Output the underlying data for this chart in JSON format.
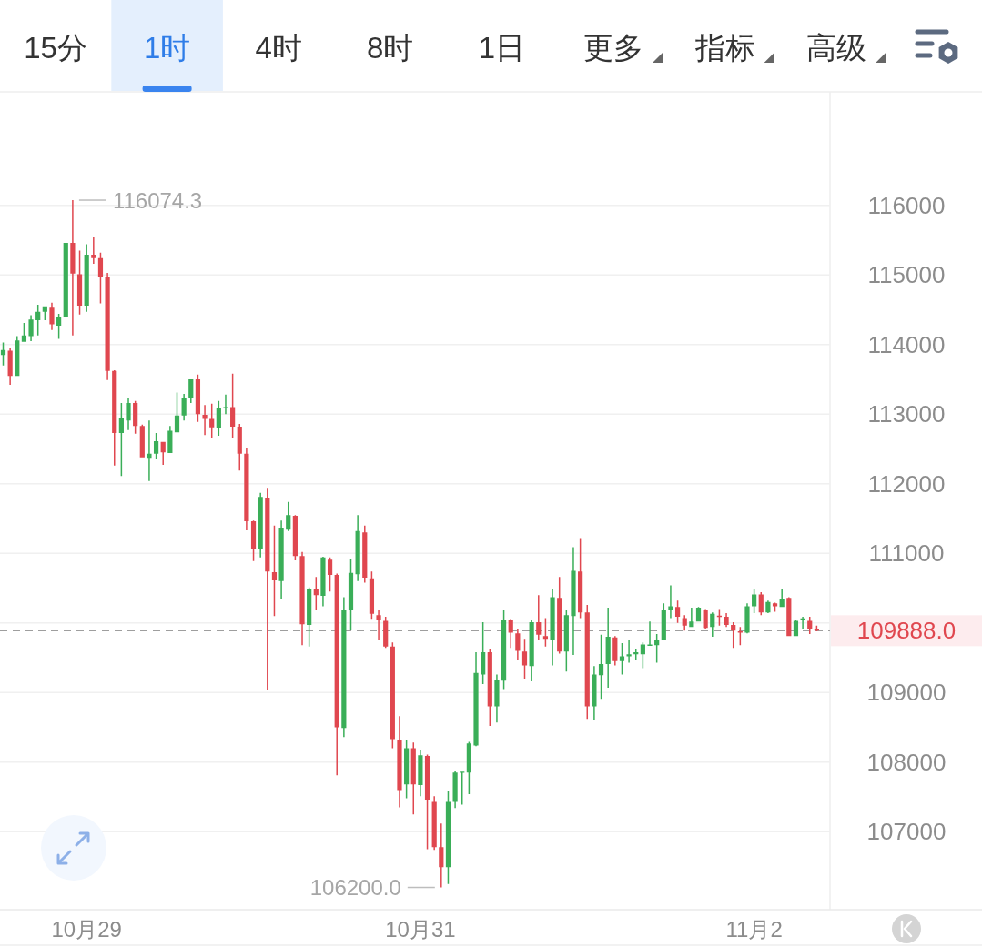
{
  "chart_data": {
    "type": "candlestick",
    "categories": [
      null,
      null,
      null,
      null,
      null,
      null,
      null,
      null,
      null,
      null,
      null,
      null,
      "10月29",
      null,
      null,
      null,
      null,
      null,
      null,
      null,
      null,
      null,
      null,
      null,
      null,
      null,
      null,
      null,
      null,
      null,
      null,
      null,
      null,
      null,
      null,
      null,
      null,
      null,
      null,
      null,
      null,
      null,
      null,
      null,
      null,
      null,
      null,
      null,
      null,
      null,
      null,
      null,
      null,
      null,
      null,
      null,
      null,
      null,
      null,
      null,
      "10月31",
      null,
      null,
      null,
      null,
      null,
      null,
      null,
      null,
      null,
      null,
      null,
      null,
      null,
      null,
      null,
      null,
      null,
      null,
      null,
      null,
      null,
      null,
      null,
      null,
      null,
      null,
      null,
      null,
      null,
      null,
      null,
      null,
      null,
      null,
      null,
      null,
      null,
      null,
      null,
      null,
      null,
      null,
      null,
      null,
      null,
      null,
      null,
      "11月2",
      null,
      null,
      null,
      null,
      null,
      null,
      null,
      null,
      null
    ],
    "ohlc": [
      [
        113850,
        114030,
        113700,
        113920
      ],
      [
        113910,
        113950,
        113420,
        113550
      ],
      [
        113550,
        114120,
        113550,
        114060
      ],
      [
        114040,
        114310,
        114040,
        114130
      ],
      [
        114120,
        114420,
        114050,
        114360
      ],
      [
        114350,
        114570,
        114130,
        114470
      ],
      [
        114470,
        114550,
        114350,
        114550
      ],
      [
        114530,
        114600,
        114210,
        114290
      ],
      [
        114270,
        114440,
        114080,
        114400
      ],
      [
        114390,
        115460,
        114390,
        115460
      ],
      [
        115460,
        116074.3,
        114130,
        115020
      ],
      [
        115010,
        115350,
        114430,
        114560
      ],
      [
        114560,
        115440,
        114470,
        115290
      ],
      [
        115290,
        115540,
        115160,
        115240
      ],
      [
        115240,
        115320,
        114590,
        114970
      ],
      [
        114970,
        115030,
        113490,
        113620
      ],
      [
        113620,
        113630,
        112260,
        112730
      ],
      [
        112730,
        113160,
        112110,
        112940
      ],
      [
        112910,
        113230,
        112770,
        113160
      ],
      [
        113160,
        113190,
        112720,
        112830
      ],
      [
        112830,
        112850,
        112380,
        112380
      ],
      [
        112360,
        112910,
        112040,
        112430
      ],
      [
        112430,
        112730,
        112350,
        112610
      ],
      [
        112600,
        112600,
        112270,
        112450
      ],
      [
        112440,
        112830,
        112440,
        112760
      ],
      [
        112740,
        113310,
        112740,
        112980
      ],
      [
        112980,
        113290,
        112910,
        113230
      ],
      [
        113230,
        113500,
        113160,
        113500
      ],
      [
        113500,
        113570,
        112890,
        113000
      ],
      [
        112990,
        113130,
        112700,
        112930
      ],
      [
        112930,
        113150,
        112660,
        112810
      ],
      [
        112800,
        113190,
        112690,
        113080
      ],
      [
        113080,
        113280,
        113000,
        113100
      ],
      [
        113100,
        113580,
        112650,
        112820
      ],
      [
        112820,
        112860,
        112190,
        112430
      ],
      [
        112430,
        112510,
        111330,
        111460
      ],
      [
        111460,
        111470,
        110890,
        111060
      ],
      [
        111060,
        111870,
        110940,
        111810
      ],
      [
        111800,
        111940,
        109030,
        110740
      ],
      [
        110730,
        111400,
        110100,
        110610
      ],
      [
        110600,
        111470,
        110340,
        111370
      ],
      [
        111340,
        111740,
        111320,
        111550
      ],
      [
        111540,
        111550,
        110900,
        110960
      ],
      [
        110960,
        111020,
        109680,
        109980
      ],
      [
        109970,
        110510,
        109660,
        110490
      ],
      [
        110490,
        110660,
        110180,
        110400
      ],
      [
        110390,
        110950,
        110240,
        110940
      ],
      [
        110910,
        110940,
        110450,
        110690
      ],
      [
        110690,
        110710,
        107810,
        108500
      ],
      [
        108490,
        110370,
        108360,
        110190
      ],
      [
        110190,
        110920,
        109900,
        110720
      ],
      [
        110700,
        111550,
        110600,
        111320
      ],
      [
        111300,
        111400,
        110580,
        110650
      ],
      [
        110640,
        110740,
        110060,
        110130
      ],
      [
        110110,
        110180,
        109750,
        110050
      ],
      [
        110030,
        110090,
        109640,
        109660
      ],
      [
        109660,
        109720,
        108200,
        108330
      ],
      [
        108320,
        108660,
        107350,
        107600
      ],
      [
        107680,
        108310,
        107480,
        108200
      ],
      [
        108200,
        108280,
        107250,
        107680
      ],
      [
        107670,
        108180,
        107510,
        108100
      ],
      [
        108090,
        108110,
        106750,
        107460
      ],
      [
        107430,
        107510,
        106740,
        106780
      ],
      [
        106780,
        107120,
        106200.0,
        106490
      ],
      [
        106490,
        107590,
        106250,
        107430
      ],
      [
        107430,
        107880,
        107340,
        107850
      ],
      [
        107850,
        107860,
        107390,
        107860
      ],
      [
        107850,
        108290,
        107540,
        108270
      ],
      [
        108240,
        109580,
        108230,
        109280
      ],
      [
        109260,
        110010,
        109120,
        109580
      ],
      [
        109580,
        109630,
        108520,
        108800
      ],
      [
        108800,
        109260,
        108570,
        109180
      ],
      [
        109170,
        110190,
        109050,
        110050
      ],
      [
        110050,
        110060,
        109640,
        109860
      ],
      [
        109850,
        109920,
        109460,
        109600
      ],
      [
        109590,
        109770,
        109200,
        109390
      ],
      [
        109380,
        110050,
        109160,
        110010
      ],
      [
        110010,
        110400,
        109760,
        109830
      ],
      [
        109810,
        110070,
        109660,
        109770
      ],
      [
        109760,
        110490,
        109390,
        110370
      ],
      [
        110360,
        110660,
        109560,
        109590
      ],
      [
        109590,
        110190,
        109300,
        110110
      ],
      [
        110100,
        111090,
        109540,
        110750
      ],
      [
        110740,
        111220,
        110070,
        110150
      ],
      [
        110150,
        110260,
        108620,
        108800
      ],
      [
        108800,
        109380,
        108600,
        109260
      ],
      [
        109250,
        109830,
        108910,
        109410
      ],
      [
        109410,
        110220,
        109070,
        109800
      ],
      [
        109790,
        109810,
        109390,
        109450
      ],
      [
        109450,
        109710,
        109260,
        109520
      ],
      [
        109520,
        109760,
        109430,
        109550
      ],
      [
        109550,
        109630,
        109460,
        109580
      ],
      [
        109550,
        109720,
        109350,
        109690
      ],
      [
        109670,
        110020,
        109670,
        109690
      ],
      [
        109680,
        109840,
        109430,
        109750
      ],
      [
        109750,
        110280,
        109750,
        110190
      ],
      [
        110180,
        110540,
        110070,
        110240
      ],
      [
        110230,
        110320,
        110000,
        110090
      ],
      [
        110070,
        110110,
        109890,
        109960
      ],
      [
        109940,
        110220,
        109940,
        110020
      ],
      [
        110020,
        110230,
        110020,
        110220
      ],
      [
        110190,
        110200,
        109920,
        109930
      ],
      [
        109940,
        110150,
        109800,
        110130
      ],
      [
        110100,
        110200,
        109960,
        110090
      ],
      [
        110090,
        110140,
        109940,
        109970
      ],
      [
        109970,
        110010,
        109640,
        109890
      ],
      [
        109880,
        109940,
        109680,
        109860
      ],
      [
        109860,
        110280,
        109850,
        110240
      ],
      [
        110240,
        110480,
        110140,
        110410
      ],
      [
        110410,
        110440,
        110110,
        110150
      ],
      [
        110150,
        110320,
        110140,
        110300
      ],
      [
        110280,
        110290,
        110160,
        110240
      ],
      [
        110230,
        110480,
        110230,
        110350
      ],
      [
        110360,
        110370,
        109810,
        109810
      ],
      [
        109810,
        110050,
        109810,
        110030
      ],
      [
        110050,
        110090,
        109920,
        110060
      ],
      [
        110030,
        110090,
        109840,
        109920
      ],
      [
        109920,
        109960,
        109880,
        109888.0
      ]
    ],
    "colors": [
      "#3aae58",
      "#e0474f",
      "#3aae58",
      "#3aae58",
      "#3aae58",
      "#3aae58",
      "#3aae58",
      "#e0474f",
      "#3aae58",
      "#3aae58",
      "#e0474f",
      "#e0474f",
      "#3aae58",
      "#e0474f",
      "#e0474f",
      "#e0474f",
      "#e0474f",
      "#3aae58",
      "#3aae58",
      "#e0474f",
      "#e0474f",
      "#3aae58",
      "#3aae58",
      "#e0474f",
      "#3aae58",
      "#3aae58",
      "#3aae58",
      "#3aae58",
      "#e0474f",
      "#e0474f",
      "#e0474f",
      "#3aae58",
      "#3aae58",
      "#e0474f",
      "#e0474f",
      "#e0474f",
      "#e0474f",
      "#3aae58",
      "#e0474f",
      "#e0474f",
      "#3aae58",
      "#3aae58",
      "#e0474f",
      "#e0474f",
      "#3aae58",
      "#e0474f",
      "#3aae58",
      "#e0474f",
      "#e0474f",
      "#3aae58",
      "#3aae58",
      "#3aae58",
      "#e0474f",
      "#e0474f",
      "#e0474f",
      "#e0474f",
      "#e0474f",
      "#e0474f",
      "#3aae58",
      "#e0474f",
      "#3aae58",
      "#e0474f",
      "#e0474f",
      "#e0474f",
      "#3aae58",
      "#3aae58",
      "#3aae58",
      "#3aae58",
      "#3aae58",
      "#3aae58",
      "#e0474f",
      "#3aae58",
      "#3aae58",
      "#e0474f",
      "#e0474f",
      "#e0474f",
      "#3aae58",
      "#e0474f",
      "#e0474f",
      "#3aae58",
      "#e0474f",
      "#3aae58",
      "#3aae58",
      "#e0474f",
      "#e0474f",
      "#3aae58",
      "#3aae58",
      "#3aae58",
      "#e0474f",
      "#3aae58",
      "#3aae58",
      "#3aae58",
      "#3aae58",
      "#3aae58",
      "#3aae58",
      "#3aae58",
      "#3aae58",
      "#e0474f",
      "#e0474f",
      "#3aae58",
      "#3aae58",
      "#e0474f",
      "#3aae58",
      "#e0474f",
      "#e0474f",
      "#e0474f",
      "#e0474f",
      "#3aae58",
      "#3aae58",
      "#e0474f",
      "#3aae58",
      "#e0474f",
      "#3aae58",
      "#e0474f",
      "#3aae58",
      "#3aae58",
      "#e0474f",
      "#e0474f"
    ],
    "ylim": [
      105880,
      117630
    ],
    "yticks": [
      107000,
      108000,
      109000,
      {
        "value": 110000,
        "label": null
      },
      111000,
      112000,
      113000,
      114000,
      115000,
      116000
    ],
    "grid": "y",
    "ref_lines": [
      {
        "axis": "y",
        "value": 109888.0,
        "label": "109888.0",
        "color": "#9e9e9e",
        "line_style": "dashed"
      }
    ],
    "annotations": [
      "116074.3",
      "106200.0",
      "15分",
      "1时",
      "4时",
      "8时",
      "1日",
      "更多",
      "指标",
      "高级"
    ]
  }
}
